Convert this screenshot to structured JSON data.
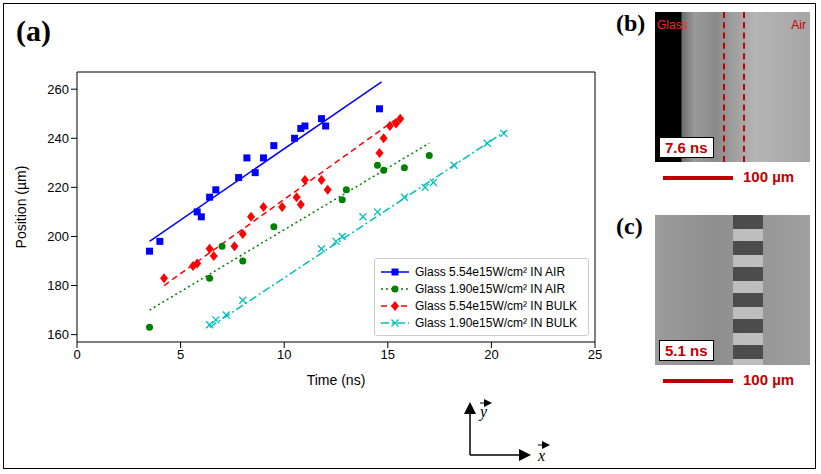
{
  "chart_data": {
    "type": "scatter",
    "x_label": "Time (ns)",
    "y_label": "Position (µm)",
    "xlim": [
      0,
      25
    ],
    "xticks": [
      0,
      5,
      10,
      15,
      20,
      25
    ],
    "ylim": [
      157,
      267
    ],
    "yticks": [
      160,
      180,
      200,
      220,
      240,
      260
    ],
    "grid": false,
    "legend": "lower right",
    "series": [
      {
        "name": "Glass 5.54e15W/cm² IN AIR",
        "color": "#0000ff",
        "marker": "square",
        "line_style": "solid",
        "x": [
          3.5,
          4.0,
          5.8,
          6.0,
          6.4,
          6.7,
          7.8,
          8.2,
          8.6,
          9.0,
          9.5,
          10.5,
          10.8,
          11.0,
          11.8,
          12.0,
          14.6
        ],
        "values": [
          194,
          198,
          210,
          208,
          216,
          219,
          224,
          232,
          226,
          232,
          237,
          240,
          244,
          245,
          248,
          245,
          252
        ],
        "fit": {
          "x": [
            3.5,
            14.7
          ],
          "values": [
            198,
            263
          ]
        }
      },
      {
        "name": "Glass 1.90e15W/cm² IN AIR",
        "color": "#008000",
        "marker": "circle",
        "line_style": "dotted",
        "x": [
          3.5,
          6.4,
          7.0,
          8.0,
          9.5,
          12.8,
          13.0,
          14.5,
          14.8,
          15.8,
          17.0
        ],
        "values": [
          163,
          183,
          196,
          190,
          204,
          215,
          219,
          229,
          227,
          228,
          233
        ],
        "fit": {
          "x": [
            3.5,
            17.0
          ],
          "values": [
            170,
            238
          ]
        }
      },
      {
        "name": "Glass 5.54e15W/cm² IN BULK",
        "color": "#ff0000",
        "marker": "diamond",
        "line_style": "dashed",
        "x": [
          4.2,
          5.6,
          5.8,
          6.4,
          6.6,
          7.6,
          8.0,
          8.4,
          9.0,
          9.9,
          10.6,
          10.8,
          11.0,
          11.8,
          12.1,
          14.6,
          14.8,
          15.1,
          15.4,
          15.6
        ],
        "values": [
          183,
          188,
          189,
          195,
          192,
          196,
          201,
          208,
          212,
          212,
          216,
          213,
          223,
          223,
          219,
          234,
          240,
          245,
          246,
          248
        ],
        "fit": {
          "x": [
            4.2,
            15.6
          ],
          "values": [
            180,
            249
          ]
        }
      },
      {
        "name": "Glass 1.90e15W/cm² IN BULK",
        "color": "#00bfbf",
        "marker": "x",
        "line_style": "dashdot",
        "x": [
          6.4,
          6.7,
          7.2,
          8.0,
          11.8,
          12.5,
          12.8,
          13.8,
          14.5,
          15.8,
          16.8,
          17.2,
          18.2,
          19.8,
          20.6
        ],
        "values": [
          164,
          166,
          168,
          174,
          195,
          198,
          200,
          208,
          210,
          216,
          220,
          222,
          229,
          238,
          242
        ],
        "fit": {
          "x": [
            6.4,
            20.7
          ],
          "values": [
            163,
            243
          ]
        }
      }
    ]
  },
  "figure": {
    "panel_a": {
      "label": "(a)"
    },
    "panel_b": {
      "label": "(b)",
      "left_text": "Glass",
      "right_text": "Air",
      "time": "7.6 ns",
      "scale_bar": "100 µm"
    },
    "panel_c": {
      "label": "(c)",
      "time": "5.1 ns",
      "scale_bar": "100 µm"
    },
    "axes": {
      "x": "x",
      "y": "y"
    }
  }
}
